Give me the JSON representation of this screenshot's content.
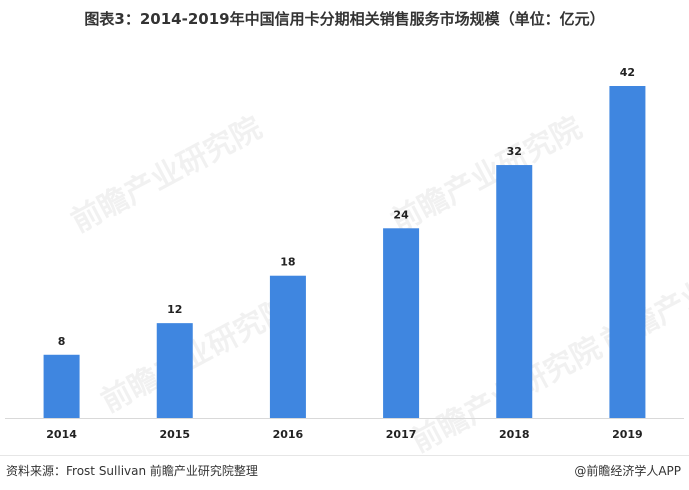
{
  "title": "图表3：2014-2019年中国信用卡分期相关销售服务市场规模（单位：亿元）",
  "source": "资料来源：Frost Sullivan 前瞻产业研究院整理",
  "brand": "@前瞻经济学人APP",
  "watermark": "前瞻产业研究院",
  "colors": {
    "bar": "#3f86e0",
    "axis": "#d9d9d9"
  },
  "chart_data": {
    "type": "bar",
    "categories": [
      "2014",
      "2015",
      "2016",
      "2017",
      "2018",
      "2019"
    ],
    "values": [
      8,
      12,
      18,
      24,
      32,
      42
    ],
    "title": "图表3：2014-2019年中国信用卡分期相关销售服务市场规模（单位：亿元）",
    "xlabel": "",
    "ylabel": "",
    "ylim": [
      0,
      42
    ],
    "grid": false,
    "legend": "none",
    "data_labels": true
  }
}
